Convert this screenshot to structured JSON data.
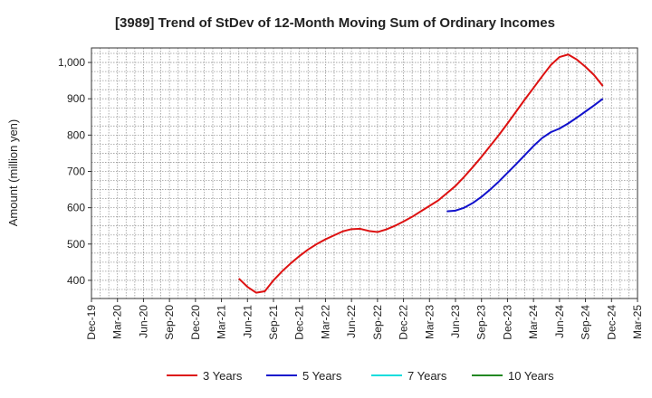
{
  "chart_data": {
    "type": "line",
    "title": "[3989]  Trend of StDev of 12-Month Moving Sum of Ordinary Incomes",
    "xlabel": "",
    "ylabel": "Amount (million yen)",
    "ylim": [
      350,
      1040
    ],
    "yticks": [
      400,
      500,
      600,
      700,
      800,
      900,
      1000
    ],
    "ytick_labels": [
      "400",
      "500",
      "600",
      "700",
      "800",
      "900",
      "1,000"
    ],
    "xtick_labels": [
      "Dec-19",
      "Mar-20",
      "Jun-20",
      "Sep-20",
      "Dec-20",
      "Mar-21",
      "Jun-21",
      "Sep-21",
      "Dec-21",
      "Mar-22",
      "Jun-22",
      "Sep-22",
      "Dec-22",
      "Mar-23",
      "Jun-23",
      "Sep-23",
      "Dec-23",
      "Mar-24",
      "Jun-24",
      "Sep-24",
      "Dec-24",
      "Mar-25"
    ],
    "grid": true,
    "legend_position": "bottom",
    "series": [
      {
        "name": "3 Years",
        "color": "#dd1111",
        "points": [
          [
            "2021-05",
            405
          ],
          [
            "2021-06",
            382
          ],
          [
            "2021-07",
            366
          ],
          [
            "2021-08",
            370
          ],
          [
            "2021-09",
            400
          ],
          [
            "2021-10",
            425
          ],
          [
            "2021-11",
            447
          ],
          [
            "2021-12",
            467
          ],
          [
            "2022-01",
            485
          ],
          [
            "2022-02",
            500
          ],
          [
            "2022-03",
            513
          ],
          [
            "2022-04",
            524
          ],
          [
            "2022-05",
            535
          ],
          [
            "2022-06",
            541
          ],
          [
            "2022-07",
            542
          ],
          [
            "2022-08",
            536
          ],
          [
            "2022-09",
            533
          ],
          [
            "2022-10",
            540
          ],
          [
            "2022-11",
            550
          ],
          [
            "2022-12",
            562
          ],
          [
            "2023-01",
            575
          ],
          [
            "2023-02",
            590
          ],
          [
            "2023-03",
            605
          ],
          [
            "2023-04",
            620
          ],
          [
            "2023-05",
            640
          ],
          [
            "2023-06",
            660
          ],
          [
            "2023-07",
            685
          ],
          [
            "2023-08",
            712
          ],
          [
            "2023-09",
            740
          ],
          [
            "2023-10",
            770
          ],
          [
            "2023-11",
            800
          ],
          [
            "2023-12",
            832
          ],
          [
            "2024-01",
            865
          ],
          [
            "2024-02",
            898
          ],
          [
            "2024-03",
            930
          ],
          [
            "2024-04",
            962
          ],
          [
            "2024-05",
            993
          ],
          [
            "2024-06",
            1015
          ],
          [
            "2024-07",
            1022
          ],
          [
            "2024-08",
            1008
          ],
          [
            "2024-09",
            988
          ],
          [
            "2024-10",
            965
          ],
          [
            "2024-11",
            935
          ]
        ]
      },
      {
        "name": "5 Years",
        "color": "#1111cc",
        "points": [
          [
            "2023-05",
            590
          ],
          [
            "2023-06",
            592
          ],
          [
            "2023-07",
            600
          ],
          [
            "2023-08",
            613
          ],
          [
            "2023-09",
            630
          ],
          [
            "2023-10",
            650
          ],
          [
            "2023-11",
            672
          ],
          [
            "2023-12",
            696
          ],
          [
            "2024-01",
            720
          ],
          [
            "2024-02",
            745
          ],
          [
            "2024-03",
            770
          ],
          [
            "2024-04",
            792
          ],
          [
            "2024-05",
            808
          ],
          [
            "2024-06",
            818
          ],
          [
            "2024-07",
            832
          ],
          [
            "2024-08",
            848
          ],
          [
            "2024-09",
            865
          ],
          [
            "2024-10",
            882
          ],
          [
            "2024-11",
            900
          ]
        ]
      },
      {
        "name": "7 Years",
        "color": "#11dddd",
        "points": []
      },
      {
        "name": "10 Years",
        "color": "#228822",
        "points": []
      }
    ]
  }
}
